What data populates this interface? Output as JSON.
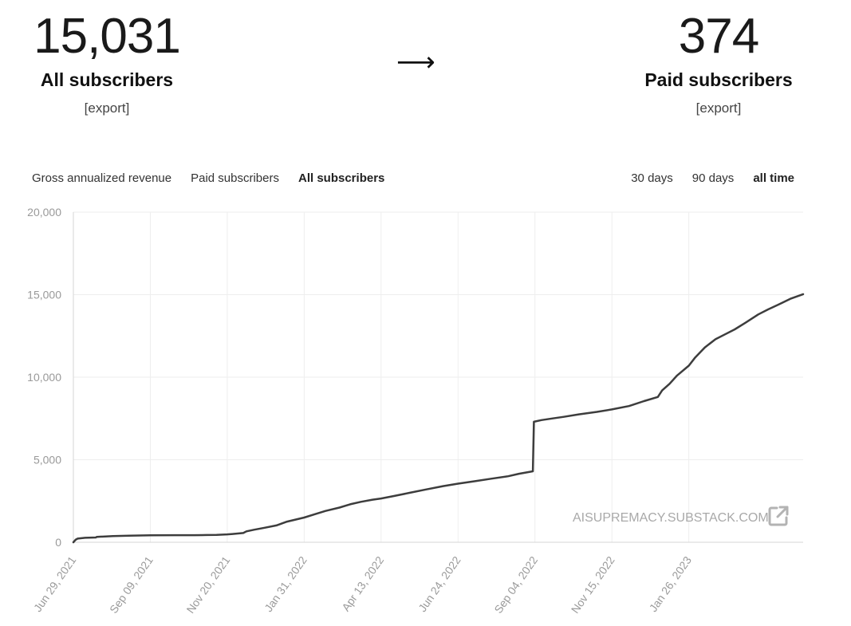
{
  "summary": {
    "all_subscribers": {
      "value": "15,031",
      "label": "All subscribers",
      "export": "[export]"
    },
    "arrow": "⟶",
    "paid_subscribers": {
      "value": "374",
      "label": "Paid subscribers",
      "export": "[export]"
    }
  },
  "metric_tabs": [
    {
      "label": "Gross annualized revenue",
      "active": false
    },
    {
      "label": "Paid subscribers",
      "active": false
    },
    {
      "label": "All subscribers",
      "active": true
    }
  ],
  "range_tabs": [
    {
      "label": "30 days",
      "active": false
    },
    {
      "label": "90 days",
      "active": false
    },
    {
      "label": "all time",
      "active": true
    }
  ],
  "watermark": "AISUPREMACY.SUBSTACK.COM",
  "watermark_icon": "external-link-icon",
  "chart_data": {
    "type": "line",
    "title": "",
    "xlabel": "",
    "ylabel": "",
    "ylim": [
      0,
      20000
    ],
    "xlim": [
      "2021-06-29",
      "2023-05-13"
    ],
    "y_ticks": [
      0,
      5000,
      10000,
      15000,
      20000
    ],
    "y_tick_labels": [
      "0",
      "5,000",
      "10,000",
      "15,000",
      "20,000"
    ],
    "x_tick_labels": [
      "Jun 29, 2021",
      "Sep 09, 2021",
      "Nov 20, 2021",
      "Jan 31, 2022",
      "Apr 13, 2022",
      "Jun 24, 2022",
      "Sep 04, 2022",
      "Nov 15, 2022",
      "Jan 26, 2023"
    ],
    "x_ticks": [
      "2021-06-29",
      "2021-09-09",
      "2021-11-20",
      "2022-01-31",
      "2022-04-13",
      "2022-06-24",
      "2022-09-04",
      "2022-11-15",
      "2023-01-26"
    ],
    "grid": true,
    "line_color": "#3d3d3d",
    "series": [
      {
        "x": [
          "2021-06-29",
          "2021-07-01",
          "2021-07-03",
          "2021-07-10",
          "2021-07-20",
          "2021-07-21",
          "2021-08-05",
          "2021-08-20",
          "2021-09-09",
          "2021-10-01",
          "2021-10-20",
          "2021-11-01",
          "2021-11-10",
          "2021-11-20",
          "2021-11-25",
          "2021-12-05",
          "2021-12-08",
          "2021-12-15",
          "2021-12-25",
          "2022-01-05",
          "2022-01-15",
          "2022-01-31",
          "2022-02-10",
          "2022-02-20",
          "2022-03-05",
          "2022-03-15",
          "2022-03-25",
          "2022-04-05",
          "2022-04-13",
          "2022-04-25",
          "2022-05-10",
          "2022-05-25",
          "2022-06-10",
          "2022-06-24",
          "2022-07-10",
          "2022-07-25",
          "2022-08-10",
          "2022-08-20",
          "2022-09-02",
          "2022-09-03",
          "2022-09-10",
          "2022-09-20",
          "2022-10-01",
          "2022-10-15",
          "2022-11-01",
          "2022-11-15",
          "2022-12-01",
          "2022-12-15",
          "2022-12-28",
          "2023-01-01",
          "2023-01-08",
          "2023-01-15",
          "2023-01-26",
          "2023-02-01",
          "2023-02-10",
          "2023-02-20",
          "2023-03-01",
          "2023-03-10",
          "2023-03-20",
          "2023-04-01",
          "2023-04-10",
          "2023-04-20",
          "2023-05-01",
          "2023-05-13"
        ],
        "y": [
          0,
          150,
          220,
          270,
          290,
          330,
          370,
          400,
          420,
          430,
          430,
          440,
          450,
          480,
          500,
          560,
          660,
          760,
          880,
          1020,
          1250,
          1500,
          1700,
          1900,
          2100,
          2300,
          2450,
          2580,
          2650,
          2800,
          3000,
          3200,
          3400,
          3550,
          3700,
          3850,
          4000,
          4150,
          4300,
          7300,
          7400,
          7500,
          7600,
          7750,
          7900,
          8050,
          8250,
          8550,
          8800,
          9200,
          9600,
          10100,
          10700,
          11200,
          11800,
          12300,
          12600,
          12900,
          13300,
          13800,
          14100,
          14400,
          14750,
          15031
        ]
      }
    ]
  }
}
